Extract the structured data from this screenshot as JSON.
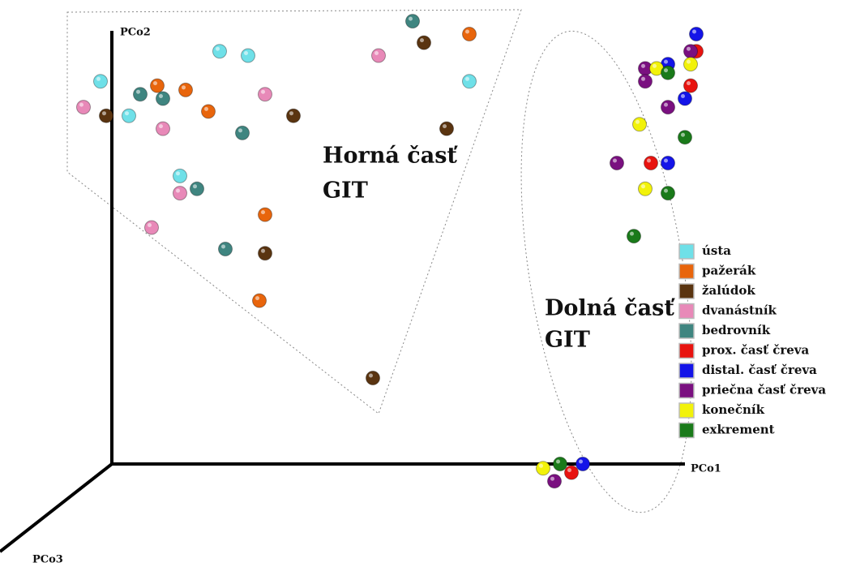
{
  "chart_data": {
    "type": "scatter",
    "xlabel": "PCo1",
    "ylabel": "PCo2",
    "zlabel": "PCo3",
    "xlim": [
      0,
      100
    ],
    "ylim": [
      0,
      100
    ],
    "annotations": [
      "Horná časť",
      "GIT",
      "Dolná časť",
      "GIT"
    ],
    "series": [
      {
        "name": "ústa",
        "color": "#6fe0e8",
        "x": [
          -2,
          3,
          19,
          24,
          63,
          12
        ],
        "values": [
          89,
          81,
          96,
          95,
          89,
          67
        ]
      },
      {
        "name": "pažerák",
        "color": "#e8650c",
        "x": [
          8,
          13,
          17,
          63,
          27,
          26
        ],
        "values": [
          88,
          87,
          82,
          100,
          58,
          38
        ]
      },
      {
        "name": "žalúdok",
        "color": "#5a3410",
        "x": [
          -1,
          32,
          55,
          59,
          27,
          46
        ],
        "values": [
          81,
          81,
          98,
          78,
          49,
          20
        ]
      },
      {
        "name": "dvanástník",
        "color": "#e889b8",
        "x": [
          -5,
          9,
          27,
          47,
          12,
          7
        ],
        "values": [
          83,
          78,
          86,
          95,
          63,
          55
        ]
      },
      {
        "name": "bedrovník",
        "color": "#3f8580",
        "x": [
          5,
          9,
          23,
          53,
          15,
          20
        ],
        "values": [
          86,
          85,
          77,
          103,
          64,
          50
        ]
      },
      {
        "name": "prox. časť čreva",
        "color": "#e8130f",
        "x": [
          103,
          102,
          95,
          81
        ],
        "values": [
          96,
          88,
          70,
          -2
        ]
      },
      {
        "name": "distal. časť čreva",
        "color": "#1414e8",
        "x": [
          103,
          98,
          101,
          98,
          83
        ],
        "values": [
          100,
          93,
          85,
          70,
          0
        ]
      },
      {
        "name": "priečna časť čreva",
        "color": "#7a1080",
        "x": [
          102,
          94,
          94,
          98,
          89,
          78
        ],
        "values": [
          96,
          92,
          89,
          83,
          70,
          -4
        ]
      },
      {
        "name": "konečník",
        "color": "#f2f20a",
        "x": [
          96,
          102,
          93,
          94,
          76
        ],
        "values": [
          92,
          93,
          79,
          64,
          -1
        ]
      },
      {
        "name": "exkrement",
        "color": "#1a7a1a",
        "x": [
          98,
          101,
          98,
          92,
          79
        ],
        "values": [
          91,
          76,
          63,
          53,
          0
        ]
      }
    ]
  }
}
